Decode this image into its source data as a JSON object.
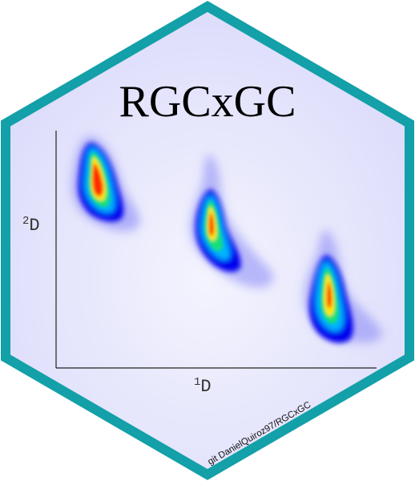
{
  "logo": {
    "title": "RGCxGC",
    "credit": "git DanielQuiroz97/RGCxGC",
    "y_axis_label": {
      "superscript": "2",
      "base": "D"
    },
    "x_axis_label": {
      "superscript": "1",
      "base": "D"
    }
  },
  "colors": {
    "border": "#13a0a8",
    "fill_center": "#f4f4fe",
    "fill_edge": "#dcdcfb",
    "axis": "#222222"
  },
  "peaks": [
    {
      "name": "peak-1",
      "colors": [
        "#0000ee",
        "#00b4ff",
        "#19e07a",
        "#ffe600",
        "#ff2a00"
      ]
    },
    {
      "name": "peak-2",
      "colors": [
        "#0000ee",
        "#00b4ff",
        "#19e07a",
        "#ffe600",
        "#ff2a00"
      ]
    },
    {
      "name": "peak-3",
      "colors": [
        "#0000ee",
        "#00b4ff",
        "#19e07a",
        "#ffe600",
        "#ff2a00"
      ]
    }
  ]
}
